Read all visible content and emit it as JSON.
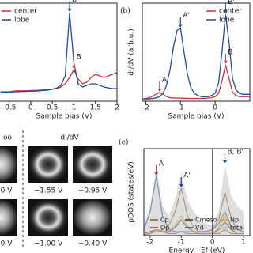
{
  "chart_data": [
    {
      "type": "line",
      "xlabel": "Sample bias (V)",
      "legend": "upper left",
      "x": [
        -0.7,
        -0.6,
        -0.5,
        -0.4,
        -0.3,
        -0.2,
        -0.1,
        0,
        0.1,
        0.2,
        0.3,
        0.4,
        0.5,
        0.6,
        0.7,
        0.8,
        0.9,
        1.0,
        1.1,
        1.2,
        1.3,
        1.4,
        1.5,
        1.6,
        1.7,
        1.8,
        1.9,
        2.0
      ],
      "series": [
        {
          "name": "center",
          "color": "#c8323c",
          "values": [
            0.3,
            0.3,
            0.3,
            0.32,
            0.33,
            0.33,
            0.33,
            0.34,
            0.34,
            0.35,
            0.36,
            0.37,
            0.38,
            0.4,
            0.45,
            0.55,
            0.75,
            1.0,
            0.7,
            0.55,
            0.6,
            0.75,
            0.85,
            0.8,
            0.75,
            0.8,
            0.85,
            0.9
          ]
        },
        {
          "name": "lobe",
          "color": "#1f4e9c",
          "values": [
            0.28,
            0.28,
            0.29,
            0.3,
            0.3,
            0.31,
            0.31,
            0.32,
            0.32,
            0.33,
            0.34,
            0.35,
            0.38,
            0.42,
            0.5,
            0.8,
            2.8,
            1.2,
            0.55,
            0.45,
            0.5,
            0.55,
            0.55,
            0.5,
            0.45,
            0.42,
            0.4,
            0.4
          ]
        }
      ],
      "xlim": [
        -0.75,
        2
      ],
      "ylim": [
        0,
        3.1
      ],
      "xticks": [
        -0.5,
        0,
        0.5,
        1,
        1.5,
        2
      ],
      "annotations": [
        {
          "text": "B'",
          "x": 0.9,
          "y": 2.8,
          "color": "#1f4e9c"
        },
        {
          "text": "B",
          "x": 1.0,
          "y": 1.0,
          "color": "#c8323c"
        }
      ]
    },
    {
      "type": "line",
      "panel": "(b)",
      "xlabel": "Sample bias (V)",
      "ylabel": "dI/dV (arb.u.)",
      "legend": "upper right",
      "x": [
        -2.1,
        -2,
        -1.9,
        -1.8,
        -1.7,
        -1.6,
        -1.5,
        -1.4,
        -1.3,
        -1.2,
        -1.1,
        -1.0,
        -0.9,
        -0.8,
        -0.7,
        -0.6,
        -0.5,
        -0.4,
        -0.3,
        -0.2,
        -0.1,
        0,
        0.1,
        0.2,
        0.3,
        0.4,
        0.5,
        0.6,
        0.7,
        0.8,
        0.9,
        1.0
      ],
      "series": [
        {
          "name": "center",
          "color": "#c8323c",
          "values": [
            0.1,
            0.12,
            0.15,
            0.22,
            0.32,
            0.38,
            0.3,
            0.2,
            0.15,
            0.14,
            0.14,
            0.14,
            0.13,
            0.12,
            0.12,
            0.12,
            0.12,
            0.12,
            0.13,
            0.14,
            0.16,
            0.2,
            0.35,
            0.9,
            1.6,
            1.0,
            0.4,
            0.25,
            0.2,
            0.2,
            0.2,
            0.2
          ]
        },
        {
          "name": "lobe",
          "color": "#1f4e9c",
          "values": [
            0.1,
            0.1,
            0.1,
            0.12,
            0.15,
            0.2,
            0.35,
            0.7,
            1.4,
            2.4,
            3.1,
            3.2,
            2.2,
            1.2,
            0.6,
            0.35,
            0.25,
            0.2,
            0.2,
            0.2,
            0.25,
            0.35,
            0.8,
            2.2,
            3.8,
            2.6,
            1.0,
            0.5,
            0.35,
            0.3,
            0.3,
            0.3
          ]
        }
      ],
      "xlim": [
        -2.1,
        1.0
      ],
      "ylim": [
        0,
        4.3
      ],
      "xticks": [
        -2,
        -1,
        0
      ],
      "annotations": [
        {
          "text": "A",
          "x": -1.6,
          "y": 0.38,
          "color": "#c8323c"
        },
        {
          "text": "A'",
          "x": -1.0,
          "y": 3.2,
          "color": "#1f4e9c"
        },
        {
          "text": "B",
          "x": 0.3,
          "y": 1.6,
          "color": "#c8323c"
        },
        {
          "text": "B'",
          "x": 0.3,
          "y": 3.8,
          "color": "#1f4e9c"
        }
      ]
    },
    {
      "type": "line",
      "panel": "(e)",
      "xlabel": "Energy - Ef (eV)",
      "ylabel": "pDOS (states/eV)",
      "legend": "lower center",
      "x": [
        -2.2,
        -2.0,
        -1.8,
        -1.6,
        -1.4,
        -1.2,
        -1.0,
        -0.8,
        -0.6,
        -0.4,
        -0.2,
        0,
        0.2,
        0.4,
        0.6,
        0.8,
        1.0
      ],
      "series": [
        {
          "name": "Cp",
          "color": "#8a5a1a",
          "values": [
            0.1,
            0.1,
            0.2,
            0.3,
            0.5,
            1.2,
            2.4,
            1.0,
            0.4,
            0.2,
            0.2,
            0.3,
            0.8,
            2.2,
            0.9,
            0.3,
            0.2
          ]
        },
        {
          "name": "Cmeso",
          "color": "#3a2a10",
          "values": [
            0.1,
            0.2,
            0.3,
            0.2,
            0.2,
            0.4,
            0.8,
            0.4,
            0.2,
            0.1,
            0.1,
            0.1,
            0.3,
            0.7,
            0.3,
            0.1,
            0.1
          ]
        },
        {
          "name": "Np",
          "color": "#d4a017",
          "values": [
            0.1,
            0.1,
            0.2,
            0.2,
            0.3,
            0.5,
            1.0,
            0.5,
            0.2,
            0.1,
            0.1,
            0.1,
            0.4,
            1.0,
            0.4,
            0.1,
            0.1
          ]
        },
        {
          "name": "Op",
          "color": "#b03030",
          "values": [
            0.05,
            0.1,
            0.3,
            0.2,
            0.1,
            0.1,
            0.2,
            0.1,
            0.1,
            0.1,
            0.1,
            0.1,
            0.1,
            0.3,
            0.1,
            0.1,
            0.1
          ]
        },
        {
          "name": "Vd",
          "color": "#1f4e9c",
          "values": [
            0.3,
            1.2,
            3.0,
            1.0,
            0.3,
            0.2,
            0.2,
            0.2,
            0.2,
            0.2,
            0.2,
            0.3,
            0.6,
            1.2,
            0.5,
            0.3,
            0.2
          ]
        },
        {
          "name": "total",
          "color": "#c8c8c8",
          "fill": true,
          "values": [
            0.5,
            1.5,
            3.5,
            1.5,
            1.0,
            1.8,
            3.2,
            1.8,
            1.2,
            0.8,
            0.6,
            0.5,
            1.2,
            3.6,
            2.0,
            1.5,
            1.2
          ]
        }
      ],
      "xlim": [
        -2.2,
        1.2
      ],
      "ylim": [
        0,
        4.4
      ],
      "xticks": [
        -2,
        -1,
        0,
        1
      ],
      "vlines": [
        0
      ],
      "annotations": [
        {
          "text": "A",
          "x": -1.8,
          "y": 3.0,
          "color": "#c8323c"
        },
        {
          "text": "A'",
          "x": -1.0,
          "y": 2.4,
          "color": "#1f4e9c"
        },
        {
          "text": "B, B'",
          "x": 0.4,
          "y": 3.6,
          "color": "#1f4e9c"
        }
      ]
    }
  ],
  "maps": {
    "header_left": "oo",
    "header": "dI/dV",
    "labels": [
      "0 V",
      "−1.55 V",
      "+0.95 V",
      "0 V",
      "−1.00 V",
      "+0.40 V"
    ]
  }
}
